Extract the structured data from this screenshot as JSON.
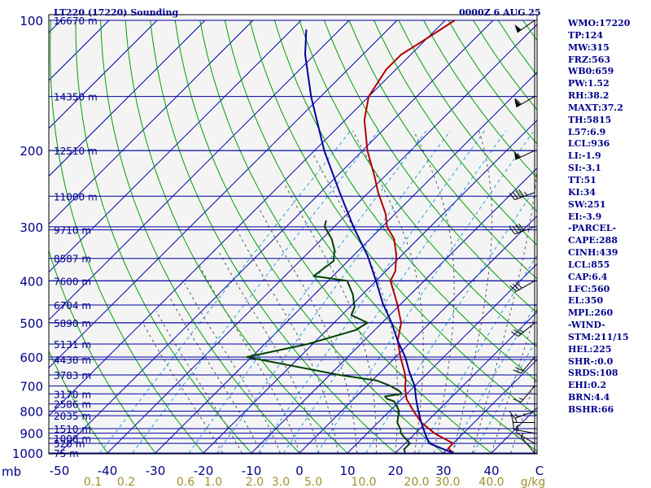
{
  "header": {
    "station": "LT220 (17220) Sounding",
    "time": "0000Z  6 AUG 25"
  },
  "indices": [
    "WMO:17220",
    "TP:124",
    "MW:315",
    "FRZ:563",
    "WB0:659",
    "PW:1.52",
    "RH:38.2",
    "MAXT:37.2",
    "TH:5815",
    "L57:6.9",
    "LCL:936",
    "LI:-1.9",
    "SI:-3.1",
    "TT:51",
    "KI:34",
    "SW:251",
    "EI:-3.9",
    "-PARCEL-",
    "CAPE:288",
    "CINH:439",
    "LCL:855",
    "CAP:6.4",
    "LFC:560",
    "EL:350",
    "MPL:260",
    "-WIND-",
    "STM:211/15",
    "HEL:225",
    "SHR-:0.0",
    "SRDS:108",
    "EHI:0.2",
    "BRN:4.4",
    "BSHR:66"
  ],
  "colors": {
    "isobar": "#0000a0",
    "isotherm": "#0000b4",
    "dry_adiabat": "#00a000",
    "moist_adiabat": "#555555",
    "mixing_ratio": "#20a0e0",
    "temperature": "#b00000",
    "dewpoint": "#004000",
    "parcel": "#0000a0",
    "mixing_label": "#a09030"
  },
  "chart_data": {
    "type": "line",
    "title": "LT220 (17220) Sounding",
    "xlabel": "",
    "ylabel": "mb",
    "ylim": [
      1000,
      100
    ],
    "xlim": [
      -50,
      50
    ],
    "y_scale": "log",
    "grid": true,
    "pressure_ticks": [
      "100",
      "200",
      "300",
      "400",
      "500",
      "600",
      "700",
      "800",
      "900",
      "1000"
    ],
    "pressure_tick_values": [
      100,
      200,
      300,
      400,
      500,
      600,
      700,
      800,
      900,
      1000
    ],
    "temp_ticks": [
      "-50",
      "-40",
      "-30",
      "-20",
      "-10",
      "0",
      "10",
      "20",
      "30",
      "40",
      "C"
    ],
    "temp_tick_values": [
      -50,
      -40,
      -30,
      -20,
      -10,
      0,
      10,
      20,
      30,
      40
    ],
    "mixing_ratio_labels": [
      "0.1",
      "0.2",
      "0.6",
      "1.0",
      "2.0",
      "3.0",
      "5.0",
      "10.0",
      "20.0",
      "30.0",
      "40.0",
      "g/kg"
    ],
    "mixing_ratio_values": [
      0.1,
      0.2,
      0.6,
      1.0,
      2.0,
      3.0,
      5.0,
      10.0,
      20.0,
      30.0,
      40.0
    ],
    "levels": [
      {
        "p": 1000,
        "h": "75 m"
      },
      {
        "p": 950,
        "h": "520 m"
      },
      {
        "p": 925,
        "h": "1008 m"
      },
      {
        "p": 878,
        "h": "1510 m"
      },
      {
        "p": 820,
        "h": "2035 m"
      },
      {
        "p": 770,
        "h": "2586 m"
      },
      {
        "p": 730,
        "h": "3170 m"
      },
      {
        "p": 660,
        "h": "3783 m"
      },
      {
        "p": 608,
        "h": "4438 m"
      },
      {
        "p": 560,
        "h": "5131 m"
      },
      {
        "p": 500,
        "h": "5890 m"
      },
      {
        "p": 455,
        "h": "6704 m"
      },
      {
        "p": 400,
        "h": "7600 m"
      },
      {
        "p": 355,
        "h": "8587 m"
      },
      {
        "p": 305,
        "h": "9710 m"
      },
      {
        "p": 255,
        "h": "11000 m"
      },
      {
        "p": 200,
        "h": "12510 m"
      },
      {
        "p": 150,
        "h": "14350 m"
      },
      {
        "p": 100,
        "h": "16670 m"
      }
    ],
    "series": [
      {
        "points": [
          [
            1000,
            32
          ],
          [
            975,
            30
          ],
          [
            950,
            30
          ],
          [
            925,
            27
          ],
          [
            900,
            24
          ],
          [
            850,
            19
          ],
          [
            800,
            15
          ],
          [
            750,
            11
          ],
          [
            700,
            8
          ],
          [
            680,
            7
          ],
          [
            650,
            5
          ],
          [
            600,
            1
          ],
          [
            550,
            -3
          ],
          [
            500,
            -6
          ],
          [
            450,
            -11
          ],
          [
            400,
            -17
          ],
          [
            380,
            -18
          ],
          [
            350,
            -21
          ],
          [
            320,
            -25
          ],
          [
            300,
            -29
          ],
          [
            280,
            -32
          ],
          [
            250,
            -38
          ],
          [
            230,
            -42
          ],
          [
            200,
            -49
          ],
          [
            170,
            -56
          ],
          [
            150,
            -60
          ],
          [
            130,
            -62
          ],
          [
            120,
            -62
          ],
          [
            110,
            -60
          ],
          [
            100,
            -58
          ]
        ]
      },
      {
        "points": [
          [
            1000,
            22
          ],
          [
            980,
            21
          ],
          [
            950,
            21
          ],
          [
            925,
            19
          ],
          [
            900,
            17
          ],
          [
            880,
            16
          ],
          [
            850,
            14
          ],
          [
            800,
            12
          ],
          [
            760,
            9
          ],
          [
            750,
            7
          ],
          [
            740,
            6
          ],
          [
            730,
            9
          ],
          [
            720,
            8
          ],
          [
            700,
            5
          ],
          [
            680,
            1
          ],
          [
            660,
            -8
          ],
          [
            600,
            -31
          ],
          [
            560,
            -21
          ],
          [
            520,
            -14
          ],
          [
            500,
            -13
          ],
          [
            480,
            -18
          ],
          [
            460,
            -19
          ],
          [
            430,
            -22
          ],
          [
            400,
            -26
          ],
          [
            390,
            -34
          ],
          [
            360,
            -33
          ],
          [
            340,
            -35
          ],
          [
            320,
            -38
          ],
          [
            300,
            -42
          ],
          [
            290,
            -43
          ]
        ]
      },
      {
        "points": [
          [
            1000,
            32
          ],
          [
            950,
            25
          ],
          [
            900,
            22
          ],
          [
            850,
            19
          ],
          [
            800,
            16
          ],
          [
            750,
            13
          ],
          [
            700,
            10
          ],
          [
            650,
            6
          ],
          [
            600,
            2
          ],
          [
            550,
            -3
          ],
          [
            500,
            -8
          ],
          [
            450,
            -14
          ],
          [
            400,
            -20
          ],
          [
            350,
            -27
          ],
          [
            300,
            -36
          ],
          [
            250,
            -46
          ],
          [
            200,
            -58
          ],
          [
            150,
            -72
          ],
          [
            120,
            -82
          ],
          [
            105,
            -87
          ]
        ]
      }
    ],
    "wind_barbs": [
      {
        "p": 1000,
        "dir": 320,
        "spd": 5
      },
      {
        "p": 950,
        "dir": 300,
        "spd": 10
      },
      {
        "p": 900,
        "dir": 280,
        "spd": 15
      },
      {
        "p": 850,
        "dir": 270,
        "spd": 15
      },
      {
        "p": 800,
        "dir": 250,
        "spd": 15
      },
      {
        "p": 700,
        "dir": 220,
        "spd": 15
      },
      {
        "p": 600,
        "dir": 220,
        "spd": 20
      },
      {
        "p": 500,
        "dir": 230,
        "spd": 25
      },
      {
        "p": 400,
        "dir": 240,
        "spd": 30
      },
      {
        "p": 300,
        "dir": 250,
        "spd": 40
      },
      {
        "p": 250,
        "dir": 250,
        "spd": 45
      },
      {
        "p": 200,
        "dir": 245,
        "spd": 55
      },
      {
        "p": 150,
        "dir": 240,
        "spd": 60
      },
      {
        "p": 100,
        "dir": 235,
        "spd": 50
      }
    ]
  }
}
